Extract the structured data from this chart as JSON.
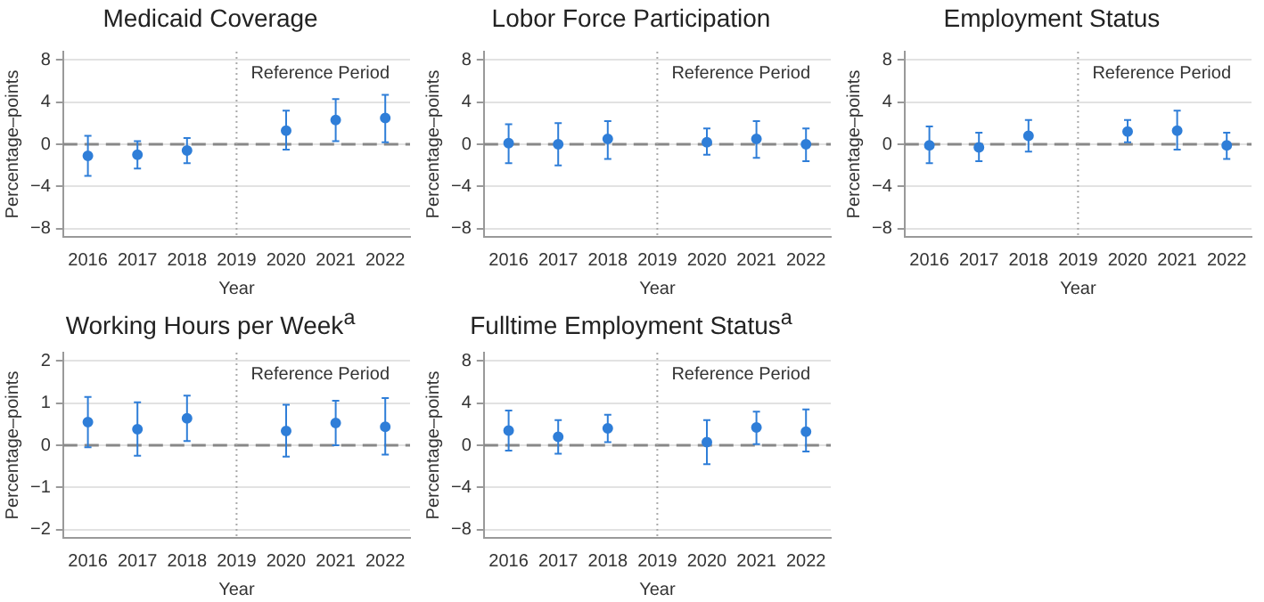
{
  "chart_data": [
    {
      "type": "scatter",
      "title": "Medicaid Coverage",
      "xlabel": "Year",
      "ylabel": "Percentage–points",
      "categories": [
        "2016",
        "2017",
        "2018",
        "2019",
        "2020",
        "2021",
        "2022"
      ],
      "values": [
        -1.1,
        -1.0,
        -0.6,
        null,
        1.3,
        2.3,
        2.5
      ],
      "errors": [
        [
          -3.0,
          0.8
        ],
        [
          -2.3,
          0.3
        ],
        [
          -1.8,
          0.6
        ],
        null,
        [
          -0.5,
          3.2
        ],
        [
          0.3,
          4.3
        ],
        [
          0.2,
          4.7
        ]
      ],
      "color": "#2f7ed8",
      "marker": "circle",
      "ylim": [
        -8.8,
        8.8
      ],
      "yticks": [
        -8,
        -4,
        0,
        4,
        8
      ],
      "grid": "y",
      "ref_lines": [
        {
          "axis": "y",
          "value": 0,
          "color": "#888888",
          "line_style": "dashed"
        },
        {
          "axis": "x",
          "value": "2019",
          "label": "Reference Period",
          "color": "#aaaaaa",
          "line_style": "dotted"
        }
      ]
    },
    {
      "type": "scatter",
      "title": "Lobor Force Participation",
      "xlabel": "Year",
      "ylabel": "Percentage–points",
      "categories": [
        "2016",
        "2017",
        "2018",
        "2019",
        "2020",
        "2021",
        "2022"
      ],
      "values": [
        0.1,
        0.0,
        0.5,
        null,
        0.2,
        0.5,
        0.0
      ],
      "errors": [
        [
          -1.8,
          1.9
        ],
        [
          -2.0,
          2.0
        ],
        [
          -1.4,
          2.2
        ],
        null,
        [
          -1.0,
          1.5
        ],
        [
          -1.3,
          2.2
        ],
        [
          -1.6,
          1.5
        ]
      ],
      "color": "#2f7ed8",
      "marker": "circle",
      "ylim": [
        -8.8,
        8.8
      ],
      "yticks": [
        -8,
        -4,
        0,
        4,
        8
      ],
      "grid": "y",
      "ref_lines": [
        {
          "axis": "y",
          "value": 0,
          "color": "#888888",
          "line_style": "dashed"
        },
        {
          "axis": "x",
          "value": "2019",
          "label": "Reference Period",
          "color": "#aaaaaa",
          "line_style": "dotted"
        }
      ]
    },
    {
      "type": "scatter",
      "title": "Employment Status",
      "xlabel": "Year",
      "ylabel": "Percentage–points",
      "categories": [
        "2016",
        "2017",
        "2018",
        "2019",
        "2020",
        "2021",
        "2022"
      ],
      "values": [
        -0.1,
        -0.3,
        0.8,
        null,
        1.2,
        1.3,
        -0.1
      ],
      "errors": [
        [
          -1.8,
          1.7
        ],
        [
          -1.6,
          1.1
        ],
        [
          -0.7,
          2.3
        ],
        null,
        [
          0.2,
          2.3
        ],
        [
          -0.5,
          3.2
        ],
        [
          -1.4,
          1.1
        ]
      ],
      "color": "#2f7ed8",
      "marker": "circle",
      "ylim": [
        -8.8,
        8.8
      ],
      "yticks": [
        -8,
        -4,
        0,
        4,
        8
      ],
      "grid": "y",
      "ref_lines": [
        {
          "axis": "y",
          "value": 0,
          "color": "#888888",
          "line_style": "dashed"
        },
        {
          "axis": "x",
          "value": "2019",
          "label": "Reference Period",
          "color": "#aaaaaa",
          "line_style": "dotted"
        }
      ]
    },
    {
      "type": "scatter",
      "title": "Working Hours per Week$^{a}$",
      "xlabel": "Year",
      "ylabel": "Percentage–points",
      "categories": [
        "2016",
        "2017",
        "2018",
        "2019",
        "2020",
        "2021",
        "2022"
      ],
      "values": [
        0.55,
        0.38,
        0.64,
        null,
        0.34,
        0.53,
        0.44
      ],
      "errors": [
        [
          -0.05,
          1.15
        ],
        [
          -0.25,
          1.02
        ],
        [
          0.1,
          1.18
        ],
        null,
        [
          -0.27,
          0.96
        ],
        [
          0.0,
          1.06
        ],
        [
          -0.22,
          1.12
        ]
      ],
      "color": "#2f7ed8",
      "marker": "circle",
      "ylim": [
        -2.2,
        2.2
      ],
      "yticks": [
        -2,
        -1,
        0,
        1,
        2
      ],
      "grid": "y",
      "ref_lines": [
        {
          "axis": "y",
          "value": 0,
          "color": "#888888",
          "line_style": "dashed"
        },
        {
          "axis": "x",
          "value": "2019",
          "label": "Reference Period",
          "color": "#aaaaaa",
          "line_style": "dotted"
        }
      ]
    },
    {
      "type": "scatter",
      "title": "Fulltime Employment Status$^{a}$",
      "xlabel": "Year",
      "ylabel": "Percentage–points",
      "categories": [
        "2016",
        "2017",
        "2018",
        "2019",
        "2020",
        "2021",
        "2022"
      ],
      "values": [
        1.4,
        0.8,
        1.6,
        null,
        0.3,
        1.7,
        1.3
      ],
      "errors": [
        [
          -0.5,
          3.3
        ],
        [
          -0.8,
          2.4
        ],
        [
          0.3,
          2.9
        ],
        null,
        [
          -1.8,
          2.4
        ],
        [
          0.1,
          3.2
        ],
        [
          -0.6,
          3.4
        ]
      ],
      "color": "#2f7ed8",
      "marker": "circle",
      "ylim": [
        -8.8,
        8.8
      ],
      "yticks": [
        -8,
        -4,
        0,
        4,
        8
      ],
      "grid": "y",
      "ref_lines": [
        {
          "axis": "y",
          "value": 0,
          "color": "#888888",
          "line_style": "dashed"
        },
        {
          "axis": "x",
          "value": "2019",
          "label": "Reference Period",
          "color": "#aaaaaa",
          "line_style": "dotted"
        }
      ]
    }
  ]
}
